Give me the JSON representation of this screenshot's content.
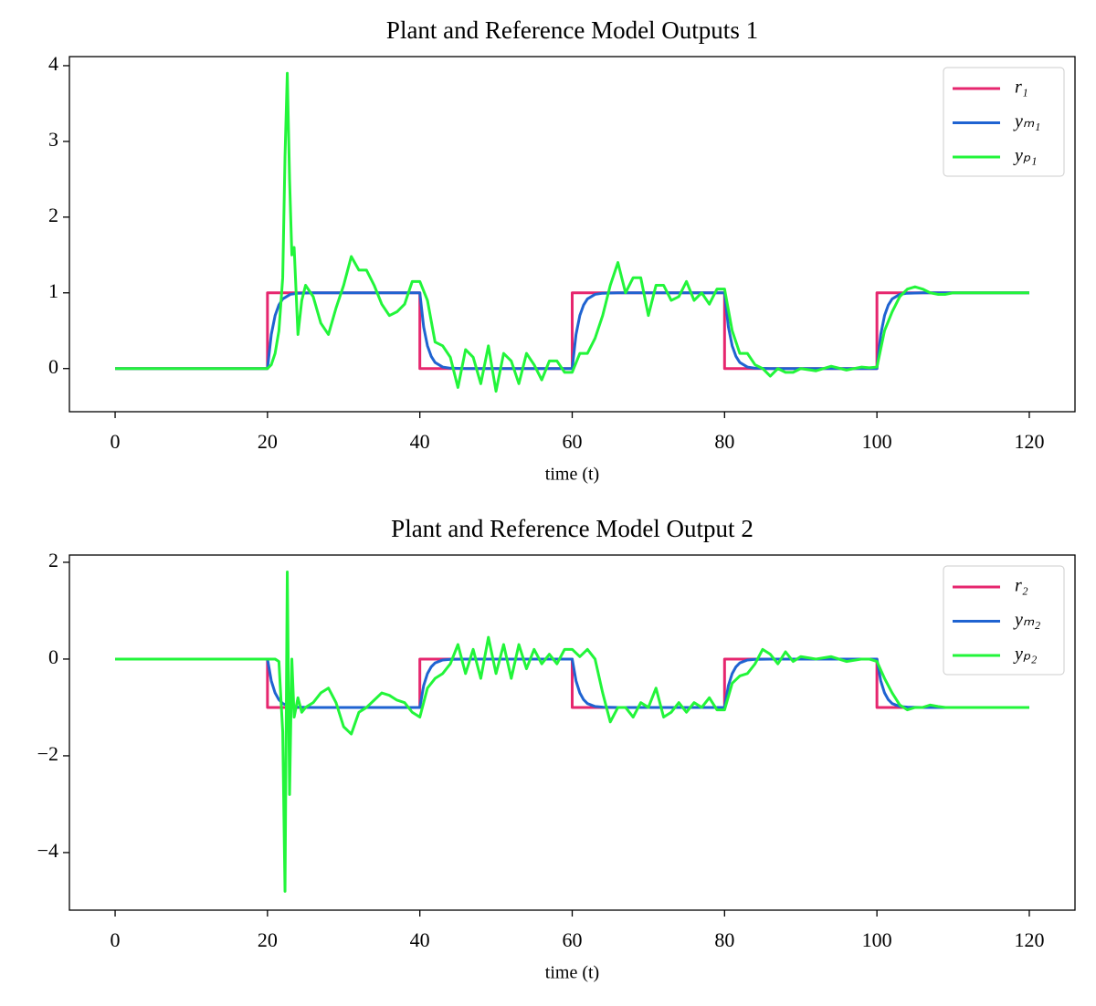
{
  "chart_data": [
    {
      "type": "line",
      "title": "Plant and Reference Model Outputs 1",
      "xlabel": "time (t)",
      "xlim": [
        -6,
        126
      ],
      "ylim": [
        -0.57,
        4.12
      ],
      "xticks": [
        0,
        20,
        40,
        60,
        80,
        100,
        120
      ],
      "yticks": [
        0,
        1,
        2,
        3,
        4
      ],
      "legend": "upper right",
      "series": [
        {
          "name": "r₁",
          "color": "#e6266e",
          "x": [
            0,
            20,
            20,
            40,
            40,
            60,
            60,
            80,
            80,
            100,
            100,
            120
          ],
          "values": [
            0,
            0,
            1,
            1,
            0,
            0,
            1,
            1,
            0,
            0,
            1,
            1
          ]
        },
        {
          "name": "yₘ₁",
          "color": "#1f63d1",
          "x": [
            0,
            20,
            20.5,
            21,
            21.5,
            22,
            23,
            24,
            26,
            40,
            40.5,
            41,
            41.5,
            42,
            43,
            44,
            46,
            60,
            60.5,
            61,
            61.5,
            62,
            63,
            64,
            66,
            80,
            80.5,
            81,
            81.5,
            82,
            83,
            84,
            86,
            100,
            100.5,
            101,
            101.5,
            102,
            103,
            104,
            106,
            120
          ],
          "values": [
            0,
            0,
            0.45,
            0.7,
            0.84,
            0.92,
            0.98,
            0.995,
            1,
            1,
            0.55,
            0.3,
            0.16,
            0.08,
            0.02,
            0.005,
            0,
            0,
            0.45,
            0.7,
            0.84,
            0.92,
            0.98,
            0.995,
            1,
            1,
            0.55,
            0.3,
            0.16,
            0.08,
            0.02,
            0.005,
            0,
            0,
            0.45,
            0.7,
            0.84,
            0.92,
            0.98,
            0.995,
            1,
            1
          ]
        },
        {
          "name": "yₚ₁",
          "color": "#22f53a",
          "x": [
            0,
            20,
            20.5,
            21,
            21.5,
            22,
            22.3,
            22.6,
            22.9,
            23.2,
            23.5,
            24,
            24.5,
            25,
            26,
            27,
            28,
            29,
            30,
            31,
            32,
            33,
            34,
            35,
            36,
            37,
            38,
            39,
            40,
            41,
            42,
            43,
            44,
            45,
            46,
            47,
            48,
            49,
            50,
            51,
            52,
            53,
            54,
            55,
            56,
            57,
            58,
            59,
            60,
            61,
            62,
            63,
            64,
            65,
            66,
            67,
            68,
            69,
            70,
            71,
            72,
            73,
            74,
            75,
            76,
            77,
            78,
            79,
            80,
            81,
            82,
            83,
            84,
            85,
            86,
            87,
            88,
            89,
            90,
            92,
            94,
            96,
            98,
            99,
            100,
            101,
            102,
            103,
            104,
            105,
            106,
            107,
            108,
            109,
            110,
            115,
            120
          ],
          "values": [
            0,
            0,
            0.05,
            0.2,
            0.5,
            1.2,
            2.8,
            3.9,
            2.5,
            1.5,
            1.6,
            0.45,
            0.9,
            1.1,
            0.95,
            0.6,
            0.45,
            0.8,
            1.1,
            1.48,
            1.3,
            1.3,
            1.1,
            0.85,
            0.7,
            0.75,
            0.85,
            1.15,
            1.15,
            0.9,
            0.35,
            0.3,
            0.15,
            -0.25,
            0.25,
            0.15,
            -0.2,
            0.3,
            -0.3,
            0.2,
            0.1,
            -0.2,
            0.2,
            0.05,
            -0.15,
            0.1,
            0.1,
            -0.05,
            -0.05,
            0.2,
            0.2,
            0.4,
            0.7,
            1.1,
            1.4,
            1.0,
            1.2,
            1.2,
            0.7,
            1.1,
            1.1,
            0.9,
            0.95,
            1.15,
            0.9,
            1.0,
            0.85,
            1.05,
            1.05,
            0.5,
            0.2,
            0.2,
            0.05,
            0.0,
            -0.1,
            0.0,
            -0.05,
            -0.05,
            0.0,
            -0.03,
            0.03,
            -0.02,
            0.02,
            0.01,
            0.02,
            0.5,
            0.75,
            0.95,
            1.05,
            1.08,
            1.05,
            1.0,
            0.98,
            0.98,
            1.0,
            1.0,
            1.0
          ]
        }
      ]
    },
    {
      "type": "line",
      "title": "Plant and Reference Model Output 2",
      "xlabel": "time (t)",
      "xlim": [
        -6,
        126
      ],
      "ylim": [
        -5.19,
        2.15
      ],
      "xticks": [
        0,
        20,
        40,
        60,
        80,
        100,
        120
      ],
      "yticks": [
        {
          "value": -4,
          "label": "−4"
        },
        {
          "value": -2,
          "label": "−2"
        },
        0,
        2
      ],
      "legend": "upper right",
      "series": [
        {
          "name": "r₂",
          "color": "#e6266e",
          "x": [
            0,
            20,
            20,
            40,
            40,
            60,
            60,
            80,
            80,
            100,
            100,
            120
          ],
          "values": [
            0,
            0,
            -1,
            -1,
            0,
            0,
            -1,
            -1,
            0,
            0,
            -1,
            -1
          ]
        },
        {
          "name": "yₘ₂",
          "color": "#1f63d1",
          "x": [
            0,
            20,
            20.5,
            21,
            21.5,
            22,
            23,
            24,
            26,
            40,
            40.5,
            41,
            41.5,
            42,
            43,
            44,
            46,
            60,
            60.5,
            61,
            61.5,
            62,
            63,
            64,
            66,
            80,
            80.5,
            81,
            81.5,
            82,
            83,
            84,
            86,
            100,
            100.5,
            101,
            101.5,
            102,
            103,
            104,
            106,
            120
          ],
          "values": [
            0,
            0,
            -0.45,
            -0.7,
            -0.84,
            -0.92,
            -0.98,
            -0.995,
            -1,
            -1,
            -0.55,
            -0.3,
            -0.16,
            -0.08,
            -0.02,
            -0.005,
            0,
            0,
            -0.45,
            -0.7,
            -0.84,
            -0.92,
            -0.98,
            -0.995,
            -1,
            -1,
            -0.55,
            -0.3,
            -0.16,
            -0.08,
            -0.02,
            -0.005,
            0,
            0,
            -0.45,
            -0.7,
            -0.84,
            -0.92,
            -0.98,
            -0.995,
            -1,
            -1
          ]
        },
        {
          "name": "yₚ₂",
          "color": "#22f53a",
          "x": [
            0,
            20,
            20.5,
            21,
            21.5,
            22,
            22.3,
            22.6,
            22.9,
            23.2,
            23.5,
            24,
            24.5,
            25,
            26,
            27,
            28,
            29,
            30,
            31,
            32,
            33,
            34,
            35,
            36,
            37,
            38,
            39,
            40,
            41,
            42,
            43,
            44,
            45,
            46,
            47,
            48,
            49,
            50,
            51,
            52,
            53,
            54,
            55,
            56,
            57,
            58,
            59,
            60,
            61,
            62,
            63,
            64,
            65,
            66,
            67,
            68,
            69,
            70,
            71,
            72,
            73,
            74,
            75,
            76,
            77,
            78,
            79,
            80,
            81,
            82,
            83,
            84,
            85,
            86,
            87,
            88,
            89,
            90,
            92,
            94,
            96,
            98,
            99,
            100,
            101,
            102,
            103,
            104,
            105,
            106,
            107,
            108,
            109,
            110,
            115,
            120
          ],
          "values": [
            0,
            0,
            0,
            0,
            -0.05,
            -1.5,
            -4.8,
            1.8,
            -2.8,
            0,
            -1.2,
            -0.8,
            -1.1,
            -1.0,
            -0.9,
            -0.7,
            -0.6,
            -0.9,
            -1.4,
            -1.55,
            -1.1,
            -1.0,
            -0.85,
            -0.7,
            -0.75,
            -0.85,
            -0.9,
            -1.1,
            -1.2,
            -0.6,
            -0.4,
            -0.3,
            -0.1,
            0.3,
            -0.3,
            0.2,
            -0.4,
            0.45,
            -0.3,
            0.3,
            -0.4,
            0.3,
            -0.2,
            0.2,
            -0.1,
            0.1,
            -0.1,
            0.2,
            0.2,
            0.05,
            0.2,
            0,
            -0.7,
            -1.3,
            -1.0,
            -1.0,
            -1.2,
            -0.9,
            -1.0,
            -0.6,
            -1.2,
            -1.1,
            -0.9,
            -1.1,
            -0.9,
            -1.0,
            -0.8,
            -1.05,
            -1.05,
            -0.5,
            -0.35,
            -0.3,
            -0.1,
            0.2,
            0.1,
            -0.1,
            0.15,
            -0.05,
            0.05,
            0.0,
            0.05,
            -0.05,
            0.0,
            0.0,
            -0.05,
            -0.4,
            -0.7,
            -0.95,
            -1.05,
            -1.0,
            -1.0,
            -0.95,
            -0.98,
            -1.0,
            -1.0,
            -1.0,
            -1.0
          ]
        }
      ]
    }
  ]
}
